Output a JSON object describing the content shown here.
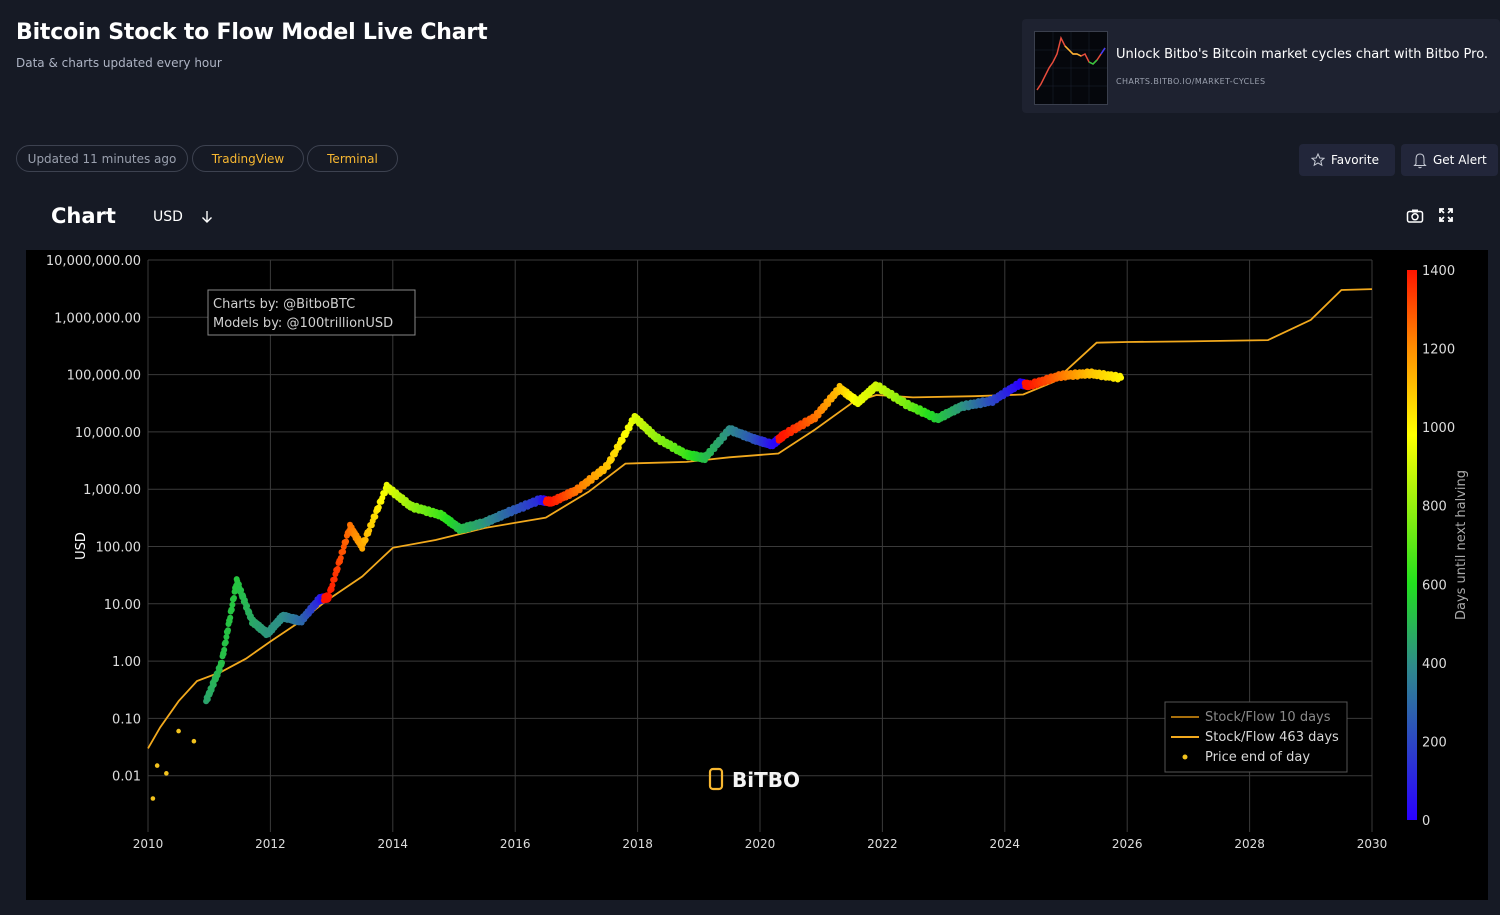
{
  "header": {
    "title": "Bitcoin Stock to Flow Model Live Chart",
    "subtitle": "Data & charts updated every hour"
  },
  "promo": {
    "text": "Unlock Bitbo's Bitcoin market cycles chart with Bitbo Pro.",
    "link": "CHARTS.BITBO.IO/MARKET-CYCLES"
  },
  "pills": {
    "updated": "Updated 11 minutes ago",
    "tradingview": "TradingView",
    "terminal": "Terminal"
  },
  "actions": {
    "favorite": "Favorite",
    "alert": "Get Alert"
  },
  "chart_header": {
    "title": "Chart",
    "currency": "USD"
  },
  "icons": [
    "star-icon",
    "bell-icon",
    "chevron-down-icon",
    "camera-icon",
    "expand-icon"
  ],
  "colors": {
    "accent": "#f7b731",
    "background": "#161a25",
    "plot_bg": "#000000",
    "model_line": "#f2a91d"
  },
  "chart_data": {
    "type": "scatter",
    "ylabel": "USD",
    "yscale": "log",
    "ylim": [
      0.001,
      10000000
    ],
    "xlim": [
      2010,
      2030
    ],
    "x_ticks": [
      "2010",
      "2012",
      "2014",
      "2016",
      "2018",
      "2020",
      "2022",
      "2024",
      "2026",
      "2028",
      "2030"
    ],
    "y_ticks": [
      "10,000,000.00",
      "1,000,000.00",
      "100,000.00",
      "10,000.00",
      "1,000.00",
      "100.00",
      "10.00",
      "1.00",
      "0.10",
      "0.01"
    ],
    "annotation": [
      "Charts by: @BitboBTC",
      "Models by: @100trillionUSD"
    ],
    "watermark": "BiTBO",
    "legend": {
      "position": "bottom-right",
      "entries": [
        "Stock/Flow 10 days",
        "Stock/Flow 463 days",
        "Price end of day"
      ]
    },
    "colorbar": {
      "title": "Days until next halving",
      "ticks": [
        "0",
        "200",
        "400",
        "600",
        "800",
        "1000",
        "1200",
        "1400"
      ],
      "range": [
        0,
        1400
      ]
    },
    "series": [
      {
        "name": "Stock/Flow 463 days",
        "points": [
          [
            2010,
            0.03
          ],
          [
            2010.2,
            0.07
          ],
          [
            2010.5,
            0.2
          ],
          [
            2010.8,
            0.45
          ],
          [
            2011.2,
            0.65
          ],
          [
            2011.6,
            1.1
          ],
          [
            2012,
            2.2
          ],
          [
            2012.5,
            5
          ],
          [
            2012.9,
            11
          ],
          [
            2013.5,
            30
          ],
          [
            2014,
            95
          ],
          [
            2014.7,
            130
          ],
          [
            2015.5,
            210
          ],
          [
            2016.5,
            320
          ],
          [
            2017.2,
            900
          ],
          [
            2017.8,
            2800
          ],
          [
            2018.8,
            3000
          ],
          [
            2019.5,
            3600
          ],
          [
            2020.3,
            4200
          ],
          [
            2020.9,
            11000
          ],
          [
            2021.5,
            32000
          ],
          [
            2021.9,
            44000
          ],
          [
            2022.5,
            40000
          ],
          [
            2023.5,
            42000
          ],
          [
            2024.3,
            45000
          ],
          [
            2024.8,
            75000
          ],
          [
            2025.5,
            360000
          ],
          [
            2026,
            370000
          ],
          [
            2027,
            380000
          ],
          [
            2028.3,
            400000
          ],
          [
            2029,
            900000
          ],
          [
            2029.5,
            3000000
          ],
          [
            2030,
            3100000
          ]
        ]
      },
      {
        "name": "Price end of day",
        "points": [
          [
            2010.08,
            0.004,
            0
          ],
          [
            2010.15,
            0.015,
            0
          ],
          [
            2010.3,
            0.011,
            0
          ],
          [
            2010.5,
            0.06,
            0
          ],
          [
            2010.75,
            0.04,
            0
          ],
          [
            2010.95,
            0.2,
            450
          ],
          [
            2011.2,
            0.9,
            520
          ],
          [
            2011.45,
            25,
            540
          ],
          [
            2011.7,
            5,
            470
          ],
          [
            2011.95,
            3,
            420
          ],
          [
            2012.2,
            6,
            400
          ],
          [
            2012.5,
            5,
            300
          ],
          [
            2012.8,
            12,
            100
          ],
          [
            2012.95,
            13,
            1400
          ],
          [
            2013.3,
            220,
            1250
          ],
          [
            2013.5,
            100,
            1150
          ],
          [
            2013.9,
            1100,
            950
          ],
          [
            2014.3,
            500,
            800
          ],
          [
            2014.8,
            350,
            650
          ],
          [
            2015.1,
            200,
            520
          ],
          [
            2015.5,
            260,
            420
          ],
          [
            2015.9,
            400,
            280
          ],
          [
            2016.4,
            650,
            120
          ],
          [
            2016.6,
            600,
            1400
          ],
          [
            2017.0,
            950,
            1250
          ],
          [
            2017.5,
            2500,
            1100
          ],
          [
            2017.95,
            18000,
            930
          ],
          [
            2018.3,
            8000,
            800
          ],
          [
            2018.8,
            4000,
            650
          ],
          [
            2019.1,
            3500,
            520
          ],
          [
            2019.5,
            11000,
            400
          ],
          [
            2019.9,
            7500,
            230
          ],
          [
            2020.2,
            6000,
            40
          ],
          [
            2020.4,
            9000,
            1400
          ],
          [
            2020.9,
            18000,
            1250
          ],
          [
            2021.3,
            58000,
            1100
          ],
          [
            2021.6,
            33000,
            950
          ],
          [
            2021.9,
            64000,
            900
          ],
          [
            2022.4,
            30000,
            750
          ],
          [
            2022.9,
            17000,
            550
          ],
          [
            2023.3,
            28000,
            420
          ],
          [
            2023.8,
            35000,
            200
          ],
          [
            2024.25,
            70000,
            10
          ],
          [
            2024.4,
            65000,
            1400
          ],
          [
            2024.9,
            95000,
            1250
          ],
          [
            2025.4,
            105000,
            1100
          ],
          [
            2025.9,
            88000,
            1000
          ]
        ]
      }
    ]
  }
}
